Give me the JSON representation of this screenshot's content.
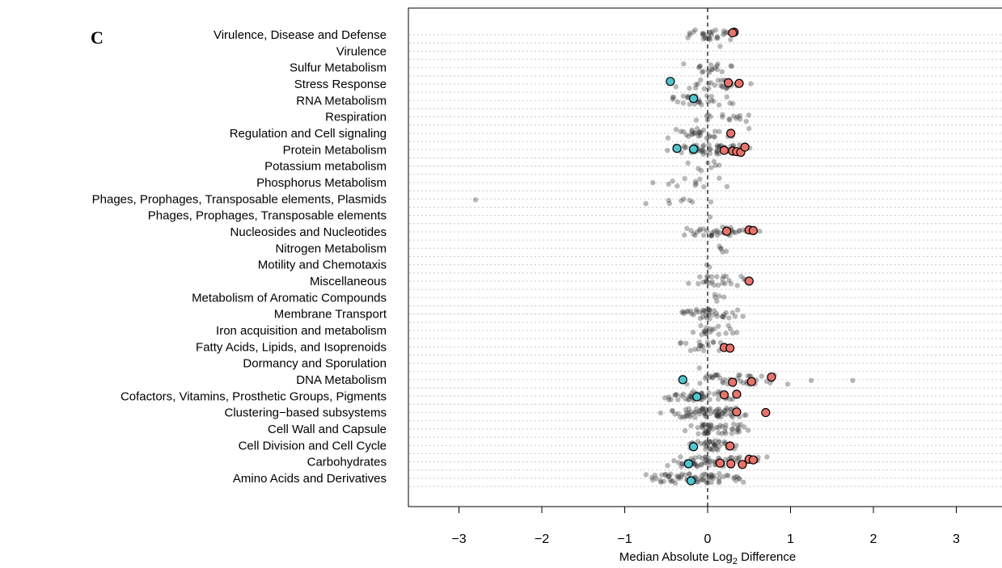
{
  "panel_label": "C",
  "chart_data": {
    "type": "scatter",
    "title": "",
    "xlabel": "Median Absolute Log2 Difference",
    "xlabel_parts": {
      "prefix": "Median Absolute  Log",
      "subscript": "2",
      "suffix": "  Difference"
    },
    "ylabel": "",
    "xlim": [
      -3.5,
      3.5
    ],
    "xticks": [
      -3,
      -2,
      -1,
      0,
      1,
      2,
      3
    ],
    "xtick_labels": [
      "−3",
      "−2",
      "−1",
      "0",
      "1",
      "2",
      "3"
    ],
    "reference_line_x": 0,
    "grid": "horizontal dotted",
    "colors": {
      "background_points": "#333333",
      "increased": "#e8736b",
      "decreased": "#4ec6cf",
      "axis": "#000000",
      "grid": "#c8c8c8"
    },
    "categories": [
      "Virulence, Disease and Defense",
      "Virulence",
      "Sulfur Metabolism",
      "Stress Response",
      "RNA Metabolism",
      "Respiration",
      "Regulation and Cell signaling",
      "Protein Metabolism",
      "Potassium metabolism",
      "Phosphorus Metabolism",
      "Phages, Prophages, Transposable elements, Plasmids",
      "Phages, Prophages, Transposable elements",
      "Nucleosides and Nucleotides",
      "Nitrogen Metabolism",
      "Motility and Chemotaxis",
      "Miscellaneous",
      "Metabolism of Aromatic Compounds",
      "Membrane Transport",
      "Iron acquisition and metabolism",
      "Fatty Acids, Lipids, and Isoprenoids",
      "Dormancy and Sporulation",
      "DNA Metabolism",
      "Cofactors, Vitamins, Prosthetic Groups, Pigments",
      "Clustering−based subsystems",
      "Cell Wall and Capsule",
      "Cell Division and Cell Cycle",
      "Carbohydrates",
      "Amino Acids and Derivatives"
    ],
    "background_spread": [
      {
        "n": 30,
        "lo": -0.5,
        "hi": 0.5
      },
      {
        "n": 1,
        "lo": 0.15,
        "hi": 0.15
      },
      {
        "n": 18,
        "lo": -0.4,
        "hi": 0.55
      },
      {
        "n": 28,
        "lo": -0.6,
        "hi": 0.75
      },
      {
        "n": 28,
        "lo": -0.65,
        "hi": 0.5
      },
      {
        "n": 16,
        "lo": -0.3,
        "hi": 0.7
      },
      {
        "n": 30,
        "lo": -0.7,
        "hi": 0.55
      },
      {
        "n": 60,
        "lo": -0.55,
        "hi": 0.65
      },
      {
        "n": 8,
        "lo": -0.3,
        "hi": 0.3
      },
      {
        "n": 12,
        "lo": -0.9,
        "hi": 0.45
      },
      {
        "n": 8,
        "lo": -0.9,
        "hi": 0.4
      },
      {
        "n": 1,
        "lo": 0.03,
        "hi": 0.03
      },
      {
        "n": 40,
        "lo": -0.45,
        "hi": 0.7
      },
      {
        "n": 5,
        "lo": 0.05,
        "hi": 0.3
      },
      {
        "n": 2,
        "lo": -0.05,
        "hi": 0.05
      },
      {
        "n": 26,
        "lo": -0.3,
        "hi": 0.6
      },
      {
        "n": 5,
        "lo": -0.1,
        "hi": 0.45
      },
      {
        "n": 40,
        "lo": -0.6,
        "hi": 0.55
      },
      {
        "n": 20,
        "lo": -0.4,
        "hi": 0.5
      },
      {
        "n": 18,
        "lo": -0.45,
        "hi": 0.35
      },
      {
        "n": 1,
        "lo": -0.1,
        "hi": -0.1
      },
      {
        "n": 45,
        "lo": -0.6,
        "hi": 1.25
      },
      {
        "n": 45,
        "lo": -0.7,
        "hi": 0.5
      },
      {
        "n": 70,
        "lo": -0.7,
        "hi": 0.7
      },
      {
        "n": 50,
        "lo": -0.5,
        "hi": 0.65
      },
      {
        "n": 40,
        "lo": -0.45,
        "hi": 0.45
      },
      {
        "n": 70,
        "lo": -0.8,
        "hi": 0.85
      },
      {
        "n": 70,
        "lo": -1.05,
        "hi": 0.7
      }
    ],
    "outlier_points": [
      {
        "category": "Phages, Prophages, Transposable elements, Plasmids",
        "x": -2.8
      },
      {
        "category": "DNA Metabolism",
        "x": 1.75
      },
      {
        "category": "DNA Metabolism",
        "x": 1.25
      }
    ],
    "highlighted": {
      "increased": [
        {
          "category": "Virulence, Disease and Defense",
          "x": 0.32
        },
        {
          "category": "Virulence, Disease and Defense",
          "x": 0.3
        },
        {
          "category": "Stress Response",
          "x": 0.25
        },
        {
          "category": "Stress Response",
          "x": 0.38
        },
        {
          "category": "Regulation and Cell signaling",
          "x": 0.28
        },
        {
          "category": "Protein Metabolism",
          "x": 0.2
        },
        {
          "category": "Protein Metabolism",
          "x": 0.3
        },
        {
          "category": "Protein Metabolism",
          "x": 0.35
        },
        {
          "category": "Protein Metabolism",
          "x": 0.4
        },
        {
          "category": "Protein Metabolism",
          "x": 0.45
        },
        {
          "category": "Nucleosides and Nucleotides",
          "x": 0.5
        },
        {
          "category": "Nucleosides and Nucleotides",
          "x": 0.55
        },
        {
          "category": "Nucleosides and Nucleotides",
          "x": 0.23
        },
        {
          "category": "Miscellaneous",
          "x": 0.5
        },
        {
          "category": "Fatty Acids, Lipids, and Isoprenoids",
          "x": 0.2
        },
        {
          "category": "Fatty Acids, Lipids, and Isoprenoids",
          "x": 0.27
        },
        {
          "category": "DNA Metabolism",
          "x": 0.53
        },
        {
          "category": "DNA Metabolism",
          "x": 0.3
        },
        {
          "category": "DNA Metabolism",
          "x": 0.77
        },
        {
          "category": "Cofactors, Vitamins, Prosthetic Groups, Pigments",
          "x": 0.35
        },
        {
          "category": "Cofactors, Vitamins, Prosthetic Groups, Pigments",
          "x": 0.2
        },
        {
          "category": "Clustering−based subsystems",
          "x": 0.35
        },
        {
          "category": "Clustering−based subsystems",
          "x": 0.7
        },
        {
          "category": "Cell Division and Cell Cycle",
          "x": 0.27
        },
        {
          "category": "Carbohydrates",
          "x": 0.15
        },
        {
          "category": "Carbohydrates",
          "x": 0.28
        },
        {
          "category": "Carbohydrates",
          "x": 0.42
        },
        {
          "category": "Carbohydrates",
          "x": 0.5
        },
        {
          "category": "Carbohydrates",
          "x": 0.55
        }
      ],
      "decreased": [
        {
          "category": "Stress Response",
          "x": -0.45
        },
        {
          "category": "RNA Metabolism",
          "x": -0.17
        },
        {
          "category": "Protein Metabolism",
          "x": -0.37
        },
        {
          "category": "Protein Metabolism",
          "x": -0.17
        },
        {
          "category": "DNA Metabolism",
          "x": -0.3
        },
        {
          "category": "Cofactors, Vitamins, Prosthetic Groups, Pigments",
          "x": -0.13
        },
        {
          "category": "Cell Division and Cell Cycle",
          "x": -0.17
        },
        {
          "category": "Carbohydrates",
          "x": -0.23
        },
        {
          "category": "Amino Acids and Derivatives",
          "x": -0.2
        }
      ]
    }
  }
}
